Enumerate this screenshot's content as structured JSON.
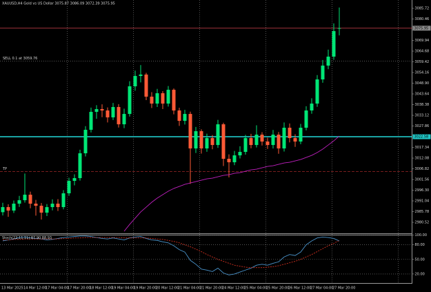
{
  "chart_data": [
    {
      "type": "candlestick",
      "title": "XAUUSD,H4  Gold vs US Dollar  3075.87 3086.09 3072.39 3075.95",
      "up_color": "#00e676",
      "down_color": "#ff5a36",
      "open": [
        2985.5,
        2987.99,
        2986.29,
        2989.68,
        2991.38,
        2994.09,
        2989.68,
        2988.66,
        2985.27,
        2987.99,
        2989.68,
        2987.99,
        2994.77,
        3000.88,
        3002.24,
        3014.45,
        3025.99,
        3034.81,
        3036.17,
        3035.49,
        3032.1,
        3037.19,
        3028.7,
        3033.79,
        3047.37,
        3052.46,
        3053.14,
        3042.28,
        3038.88,
        3043.97,
        3038.88,
        3045.67,
        3035.49,
        3030.4,
        3033.79,
        3016.83,
        3025.31,
        3016.83,
        3021.92,
        3018.52,
        3028.7,
        3011.74,
        3010.04,
        3013.43,
        3015.13,
        3021.92,
        3018.52,
        3023.61,
        3020.22,
        3018.52,
        3023.61,
        3016.83,
        3027.01,
        3021.92,
        3020.22,
        3027.01,
        3035.49,
        3038.88,
        3050.76,
        3057.55,
        3061.96,
        3075.87
      ],
      "high": [
        2990.1,
        2989.4,
        2991.2,
        2993.5,
        3004.5,
        2995.6,
        2991.5,
        2990.0,
        2989.5,
        2991.8,
        2991.9,
        2996.3,
        3002.4,
        3004.1,
        3016.2,
        3027.8,
        3036.9,
        3038.1,
        3038.5,
        3037.0,
        3039.2,
        3038.6,
        3036.4,
        3049.9,
        3055.1,
        3057.8,
        3054.0,
        3044.5,
        3046.1,
        3045.0,
        3047.5,
        3046.3,
        3036.8,
        3035.8,
        3034.9,
        3027.4,
        3026.2,
        3024.1,
        3023.4,
        3030.9,
        3029.5,
        3013.9,
        3015.6,
        3017.9,
        3023.5,
        3024.0,
        3028.2,
        3024.8,
        3022.1,
        3025.9,
        3024.9,
        3029.6,
        3029.1,
        3023.8,
        3028.9,
        3037.6,
        3041.5,
        3052.9,
        3060.3,
        3065.4,
        3078.3,
        3086.09
      ],
      "low": [
        2983.9,
        2983.2,
        2985.1,
        2988.1,
        2990.2,
        2987.4,
        2983.8,
        2981.9,
        2983.6,
        2986.4,
        2986.1,
        2986.9,
        2993.5,
        2998.7,
        3001.0,
        3012.9,
        3024.7,
        3031.4,
        3032.2,
        3029.6,
        3030.8,
        3027.1,
        3026.8,
        3032.5,
        3045.2,
        3049.3,
        3040.6,
        3036.7,
        3037.2,
        3036.2,
        3037.4,
        3033.6,
        3027.9,
        3028.6,
        2999.4,
        3014.6,
        3014.3,
        3015.2,
        3016.4,
        3017.1,
        3008.2,
        3002.6,
        3008.6,
        3011.9,
        3013.8,
        3016.9,
        3017.3,
        3018.3,
        3016.6,
        3016.8,
        3014.2,
        3015.3,
        3019.8,
        3017.6,
        3018.9,
        3025.7,
        3033.9,
        3037.3,
        3049.1,
        3055.8,
        3060.4,
        3072.39
      ],
      "close": [
        2987.99,
        2986.29,
        2989.68,
        2991.38,
        2994.09,
        2989.68,
        2988.66,
        2985.27,
        2987.99,
        2989.68,
        2987.99,
        2994.77,
        3000.88,
        3002.24,
        3014.45,
        3025.99,
        3034.81,
        3036.17,
        3035.49,
        3032.1,
        3037.19,
        3028.7,
        3033.79,
        3047.37,
        3052.46,
        3053.14,
        3042.28,
        3038.88,
        3043.97,
        3038.88,
        3045.67,
        3035.49,
        3030.4,
        3033.79,
        3016.83,
        3025.31,
        3016.83,
        3021.92,
        3018.52,
        3028.7,
        3011.74,
        3010.04,
        3013.43,
        3015.13,
        3021.92,
        3018.52,
        3023.61,
        3020.22,
        3018.52,
        3023.61,
        3016.83,
        3027.01,
        3021.92,
        3020.22,
        3027.01,
        3035.49,
        3038.88,
        3050.76,
        3057.55,
        3061.96,
        3074.51,
        3075.95
      ],
      "moving_average": {
        "color": "#c020c0",
        "values": [
          null,
          null,
          null,
          null,
          null,
          null,
          null,
          null,
          null,
          null,
          null,
          null,
          null,
          null,
          null,
          null,
          null,
          null,
          null,
          null,
          null,
          null,
          2976.11,
          2979.5,
          2982.56,
          2985.61,
          2987.98,
          2990.36,
          2992.4,
          2994.09,
          2995.79,
          2997.15,
          2998.16,
          2999.18,
          2999.86,
          3000.54,
          3001.22,
          3001.9,
          3002.24,
          3002.91,
          3003.59,
          3003.93,
          3004.61,
          3004.95,
          3005.63,
          3006.31,
          3006.65,
          3007.32,
          3008.0,
          3008.34,
          3009.02,
          3009.7,
          3010.04,
          3010.72,
          3011.4,
          3012.41,
          3013.43,
          3014.79,
          3016.49,
          3018.52,
          3020.56,
          3022.93
        ]
      },
      "ylim": [
        2975.1,
        3089.8
      ],
      "yticks": [
        3085.72,
        3080.46,
        3069.94,
        3064.68,
        3059.42,
        3054.16,
        {
          "value": 3048.9,
          "label": "3048.90"
        },
        3043.64,
        3038.38,
        3033.12,
        3027.86,
        3017.34,
        3012.08,
        3006.82,
        3001.56,
        {
          "value": 2996.3,
          "label": "2996.30"
        },
        2991.04,
        2985.78,
        2980.52
      ],
      "lines": [
        {
          "value": 3075.95,
          "color": "#b83a44",
          "tag_color": "#8c8c8c"
        },
        {
          "value": 3022.58,
          "color": "#20c8c8",
          "tag_color": "#20c8c8"
        }
      ],
      "order_line": {
        "value": 3059.76,
        "text": "SELL 0.1 at 3059.76",
        "color": "#8c8c8c"
      },
      "tp_line": {
        "value": 3005.4,
        "text": "TP",
        "color": "#c03030"
      },
      "time_labels": [
        "13 Mar 2025",
        "14 Mar 12:00",
        "17 Mar 04:00",
        "17 Mar 20:00",
        "18 Mar 12:00",
        "19 Mar 04:00",
        "19 Mar 20:00",
        "20 Mar 12:00",
        "21 Mar 04:00",
        "21 Mar 20:00",
        "24 Mar 12:00",
        "25 Mar 04:00",
        "25 Mar 20:00",
        "26 Mar 12:00",
        "27 Mar 04:00",
        "27 Mar 20:00"
      ]
    },
    {
      "type": "line",
      "title": "Stoch(22,11,11) 87.90 88.93",
      "series": [
        {
          "color": "#4a94cc",
          "values": [
            88,
            90,
            92,
            95,
            96,
            94,
            93,
            92,
            90,
            91,
            93,
            95,
            96,
            97,
            98,
            98,
            97,
            95,
            93,
            92,
            94,
            92,
            90,
            94,
            96,
            97,
            93,
            90,
            89,
            86,
            84,
            78,
            70,
            65,
            48,
            40,
            30,
            28,
            25,
            32,
            22,
            18,
            20,
            24,
            28,
            32,
            38,
            40,
            38,
            42,
            45,
            55,
            60,
            58,
            65,
            80,
            88,
            94,
            96,
            95,
            93,
            87.9
          ]
        },
        {
          "color": "#d03020",
          "dashed": true,
          "values": [
            90,
            90,
            91,
            91,
            92,
            92,
            92,
            92,
            92,
            92,
            92,
            93,
            93,
            94,
            94,
            95,
            95,
            95,
            95,
            95,
            95,
            95,
            94,
            94,
            94,
            94,
            94,
            93,
            92,
            91,
            89,
            87,
            84,
            80,
            76,
            71,
            66,
            60,
            55,
            50,
            46,
            42,
            38,
            36,
            34,
            33,
            33,
            33,
            34,
            35,
            37,
            40,
            43,
            46,
            50,
            55,
            60,
            66,
            72,
            78,
            83,
            88.93
          ]
        }
      ],
      "ylim": [
        0,
        100
      ],
      "yticks": [
        {
          "value": 100,
          "label": "100.00"
        },
        {
          "value": 80,
          "label": "80.00"
        },
        {
          "value": 50,
          "label": "50.00"
        },
        {
          "value": 20,
          "label": "20.00"
        }
      ]
    }
  ]
}
